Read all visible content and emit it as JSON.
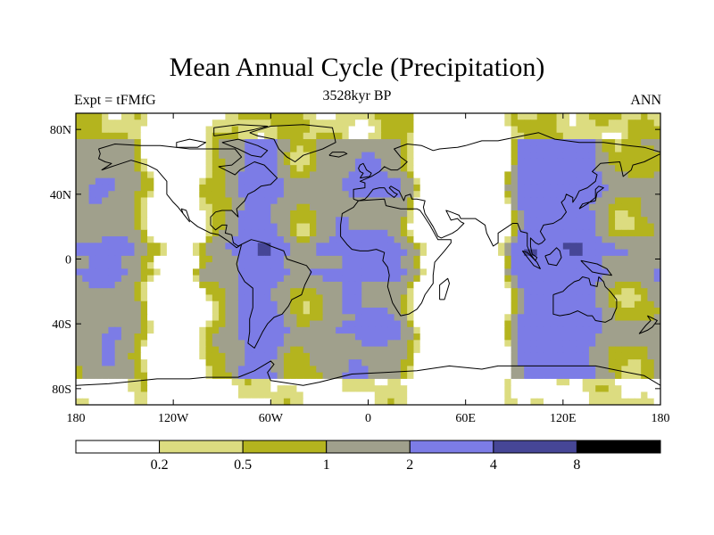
{
  "title": "Mean Annual Cycle (Precipitation)",
  "left_subtitle": "Expt = tFMfG",
  "center_subtitle": "3528kyr BP",
  "right_subtitle": "ANN",
  "chart_data": {
    "type": "heatmap",
    "projection": "cylindrical-equidistant",
    "variable": "Precipitation",
    "season": "ANN",
    "experiment": "tFMfG",
    "period": "3528kyr BP",
    "xlim": [
      -180,
      180
    ],
    "ylim": [
      -90,
      90
    ],
    "x_ticks": [
      {
        "value": -180,
        "label": "180"
      },
      {
        "value": -120,
        "label": "120W"
      },
      {
        "value": -60,
        "label": "60W"
      },
      {
        "value": 0,
        "label": "0"
      },
      {
        "value": 60,
        "label": "60E"
      },
      {
        "value": 120,
        "label": "120E"
      },
      {
        "value": 180,
        "label": "180"
      }
    ],
    "y_ticks": [
      {
        "value": 80,
        "label": "80N"
      },
      {
        "value": 40,
        "label": "40N"
      },
      {
        "value": 0,
        "label": "0"
      },
      {
        "value": -40,
        "label": "40S"
      },
      {
        "value": -80,
        "label": "80S"
      }
    ],
    "contour_levels": [
      0.2,
      0.5,
      1,
      2,
      4,
      8
    ],
    "level_labels": [
      "0.2",
      "0.5",
      "1",
      "2",
      "4",
      "8"
    ],
    "colors": [
      "#ffffff",
      "#dcdc80",
      "#b4b41e",
      "#a0a08c",
      "#7c7ce6",
      "#464696",
      "#000000"
    ],
    "coastline_color": "#000000"
  }
}
